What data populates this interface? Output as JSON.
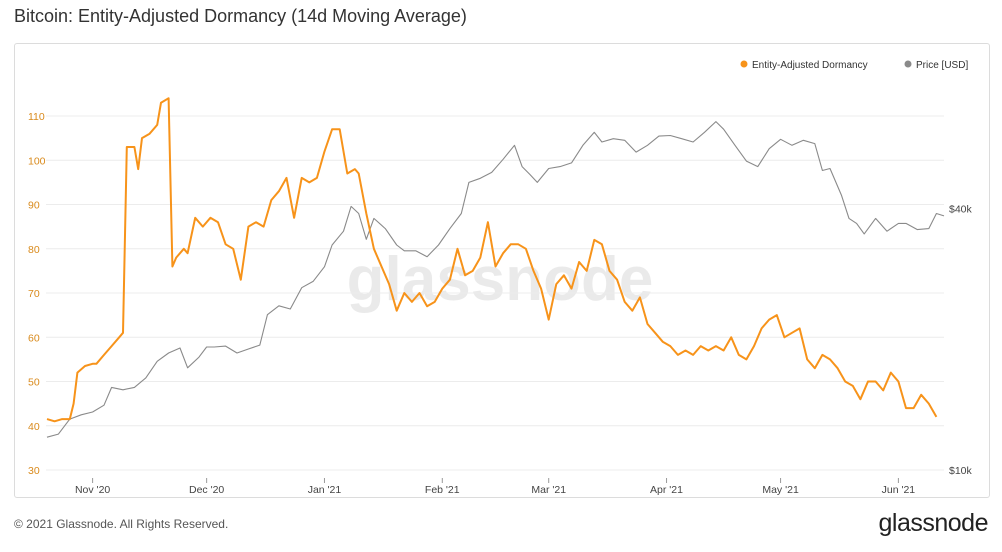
{
  "title": "Bitcoin: Entity-Adjusted Dormancy (14d Moving Average)",
  "footer": {
    "copyright": "© 2021 Glassnode. All Rights Reserved.",
    "logo": "glassnode"
  },
  "watermark": "glassnode",
  "colors": {
    "dormancy": "#f7931a",
    "price": "#8a8a8a",
    "left_axis_text": "#d98a1c",
    "axis_text": "#444444"
  },
  "chart_data": {
    "type": "line",
    "x_axis": {
      "type": "date",
      "range": [
        "2020-10-20",
        "2021-06-13"
      ],
      "ticks": [
        {
          "date": "2020-11-01",
          "label": "Nov '20"
        },
        {
          "date": "2020-12-01",
          "label": "Dec '20"
        },
        {
          "date": "2021-01-01",
          "label": "Jan '21"
        },
        {
          "date": "2021-02-01",
          "label": "Feb '21"
        },
        {
          "date": "2021-03-01",
          "label": "Mar '21"
        },
        {
          "date": "2021-04-01",
          "label": "Apr '21"
        },
        {
          "date": "2021-05-01",
          "label": "May '21"
        },
        {
          "date": "2021-06-01",
          "label": "Jun '21"
        }
      ]
    },
    "y_left": {
      "range": [
        30,
        120
      ],
      "ticks": [
        30,
        40,
        50,
        60,
        70,
        80,
        90,
        100,
        110
      ]
    },
    "y_right": {
      "scale": "log",
      "range": [
        10000,
        100000
      ],
      "ticks": [
        {
          "value": 10000,
          "label": "$10k"
        },
        {
          "value": 40000,
          "label": "$40k"
        }
      ]
    },
    "legend": {
      "placement": "top-right",
      "entries": [
        {
          "label": "Entity-Adjusted Dormancy",
          "color": "#f7931a"
        },
        {
          "label": "Price [USD]",
          "color": "#8a8a8a"
        }
      ]
    },
    "series": [
      {
        "name": "Entity-Adjusted Dormancy",
        "axis": "left",
        "color": "#f7931a",
        "x": [
          "2020-10-20",
          "2020-10-22",
          "2020-10-24",
          "2020-10-26",
          "2020-10-27",
          "2020-10-28",
          "2020-10-30",
          "2020-11-01",
          "2020-11-02",
          "2020-11-04",
          "2020-11-06",
          "2020-11-08",
          "2020-11-09",
          "2020-11-10",
          "2020-11-12",
          "2020-11-13",
          "2020-11-14",
          "2020-11-16",
          "2020-11-18",
          "2020-11-19",
          "2020-11-21",
          "2020-11-22",
          "2020-11-23",
          "2020-11-25",
          "2020-11-26",
          "2020-11-27",
          "2020-11-28",
          "2020-11-30",
          "2020-12-02",
          "2020-12-04",
          "2020-12-06",
          "2020-12-08",
          "2020-12-10",
          "2020-12-12",
          "2020-12-14",
          "2020-12-16",
          "2020-12-18",
          "2020-12-20",
          "2020-12-22",
          "2020-12-24",
          "2020-12-26",
          "2020-12-28",
          "2020-12-30",
          "2021-01-01",
          "2021-01-03",
          "2021-01-05",
          "2021-01-07",
          "2021-01-09",
          "2021-01-10",
          "2021-01-12",
          "2021-01-14",
          "2021-01-16",
          "2021-01-18",
          "2021-01-20",
          "2021-01-22",
          "2021-01-24",
          "2021-01-26",
          "2021-01-28",
          "2021-01-30",
          "2021-02-01",
          "2021-02-03",
          "2021-02-05",
          "2021-02-07",
          "2021-02-09",
          "2021-02-11",
          "2021-02-13",
          "2021-02-15",
          "2021-02-17",
          "2021-02-19",
          "2021-02-21",
          "2021-02-23",
          "2021-02-25",
          "2021-02-27",
          "2021-03-01",
          "2021-03-03",
          "2021-03-05",
          "2021-03-07",
          "2021-03-09",
          "2021-03-11",
          "2021-03-13",
          "2021-03-15",
          "2021-03-17",
          "2021-03-19",
          "2021-03-21",
          "2021-03-23",
          "2021-03-25",
          "2021-03-27",
          "2021-03-29",
          "2021-03-31",
          "2021-04-02",
          "2021-04-04",
          "2021-04-06",
          "2021-04-08",
          "2021-04-10",
          "2021-04-12",
          "2021-04-14",
          "2021-04-16",
          "2021-04-18",
          "2021-04-20",
          "2021-04-22",
          "2021-04-24",
          "2021-04-26",
          "2021-04-28",
          "2021-04-30",
          "2021-05-02",
          "2021-05-04",
          "2021-05-06",
          "2021-05-08",
          "2021-05-10",
          "2021-05-12",
          "2021-05-14",
          "2021-05-16",
          "2021-05-18",
          "2021-05-20",
          "2021-05-22",
          "2021-05-24",
          "2021-05-26",
          "2021-05-28",
          "2021-05-30",
          "2021-06-01",
          "2021-06-03",
          "2021-06-05",
          "2021-06-07",
          "2021-06-09",
          "2021-06-11"
        ],
        "y": [
          41.5,
          41,
          41.5,
          41.5,
          45,
          52,
          53.5,
          54,
          54,
          56,
          58,
          60,
          61,
          103,
          103,
          98,
          105,
          106,
          108,
          113,
          114,
          76,
          78,
          80,
          79,
          83,
          87,
          85,
          87,
          86,
          81,
          80,
          73,
          85,
          86,
          85,
          91,
          93,
          96,
          87,
          96,
          95,
          96,
          102,
          107,
          107,
          97,
          98,
          97,
          88,
          80,
          76,
          72,
          66,
          70,
          68,
          70,
          67,
          68,
          71,
          73,
          80,
          74,
          75,
          78,
          86,
          76,
          79,
          81,
          81,
          80,
          75,
          71,
          64,
          72,
          74,
          71,
          77,
          75,
          82,
          81,
          75,
          73,
          68,
          66,
          69,
          63,
          61,
          59,
          58,
          56,
          57,
          56,
          58,
          57,
          58,
          57,
          60,
          56,
          55,
          58,
          62,
          64,
          65,
          60,
          61,
          62,
          55,
          53,
          56,
          55,
          53,
          50,
          49,
          46,
          50,
          50,
          48,
          52,
          50,
          44,
          44,
          47,
          45,
          42
        ]
      },
      {
        "name": "Price [USD]",
        "axis": "right",
        "color": "#8a8a8a",
        "x": [
          "2020-10-20",
          "2020-10-23",
          "2020-10-26",
          "2020-10-29",
          "2020-11-01",
          "2020-11-04",
          "2020-11-06",
          "2020-11-09",
          "2020-11-12",
          "2020-11-15",
          "2020-11-18",
          "2020-11-21",
          "2020-11-24",
          "2020-11-26",
          "2020-11-29",
          "2020-12-01",
          "2020-12-03",
          "2020-12-06",
          "2020-12-09",
          "2020-12-12",
          "2020-12-15",
          "2020-12-17",
          "2020-12-20",
          "2020-12-23",
          "2020-12-26",
          "2020-12-29",
          "2021-01-01",
          "2021-01-03",
          "2021-01-06",
          "2021-01-08",
          "2021-01-10",
          "2021-01-12",
          "2021-01-14",
          "2021-01-17",
          "2021-01-20",
          "2021-01-22",
          "2021-01-25",
          "2021-01-28",
          "2021-01-31",
          "2021-02-03",
          "2021-02-06",
          "2021-02-08",
          "2021-02-11",
          "2021-02-14",
          "2021-02-17",
          "2021-02-20",
          "2021-02-22",
          "2021-02-24",
          "2021-02-26",
          "2021-03-01",
          "2021-03-04",
          "2021-03-07",
          "2021-03-10",
          "2021-03-13",
          "2021-03-15",
          "2021-03-18",
          "2021-03-21",
          "2021-03-24",
          "2021-03-27",
          "2021-03-30",
          "2021-04-02",
          "2021-04-05",
          "2021-04-08",
          "2021-04-11",
          "2021-04-14",
          "2021-04-16",
          "2021-04-19",
          "2021-04-22",
          "2021-04-25",
          "2021-04-28",
          "2021-05-01",
          "2021-05-04",
          "2021-05-07",
          "2021-05-10",
          "2021-05-12",
          "2021-05-14",
          "2021-05-17",
          "2021-05-19",
          "2021-05-21",
          "2021-05-23",
          "2021-05-26",
          "2021-05-29",
          "2021-06-01",
          "2021-06-03",
          "2021-06-06",
          "2021-06-09",
          "2021-06-11",
          "2021-06-13"
        ],
        "y": [
          11900,
          12100,
          13100,
          13400,
          13600,
          14100,
          15500,
          15300,
          15500,
          16300,
          17800,
          18600,
          19100,
          17200,
          18200,
          19200,
          19200,
          19300,
          18600,
          19000,
          19400,
          22800,
          23900,
          23500,
          26300,
          27200,
          29400,
          33000,
          35500,
          40500,
          39000,
          34000,
          38000,
          36000,
          33000,
          32000,
          32000,
          31000,
          33000,
          36000,
          39000,
          46000,
          47000,
          48500,
          52000,
          56000,
          50000,
          48000,
          46000,
          49500,
          50000,
          51000,
          56000,
          60000,
          57000,
          58000,
          57500,
          54000,
          56000,
          58800,
          59000,
          58000,
          57000,
          60000,
          63500,
          61000,
          56000,
          51500,
          50000,
          55000,
          57800,
          56000,
          57500,
          56500,
          49000,
          49500,
          43000,
          38000,
          37000,
          35000,
          38000,
          35500,
          37000,
          37000,
          35800,
          36000,
          39000,
          38500
        ]
      }
    ]
  }
}
